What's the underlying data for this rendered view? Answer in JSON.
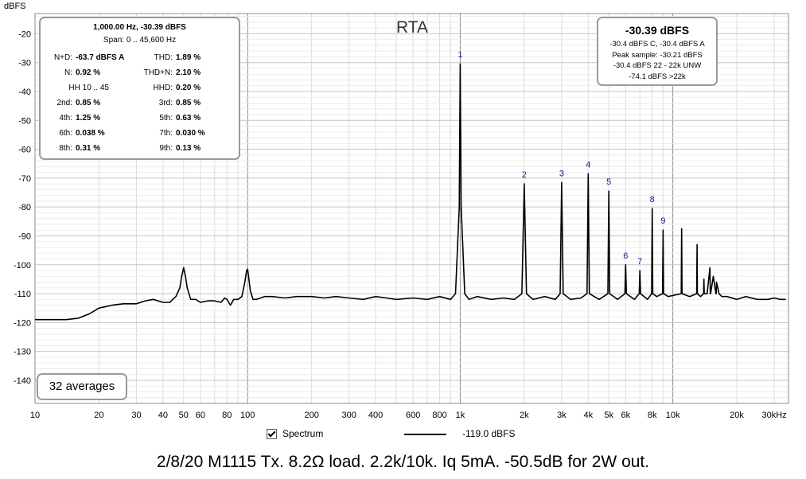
{
  "chart_data": {
    "type": "line",
    "title": "RTA",
    "ylabel": "dBFS",
    "xscale": "log",
    "xlim": [
      10,
      35000
    ],
    "ylim": [
      -148,
      -13
    ],
    "grid": true,
    "xticks": [
      {
        "v": 10,
        "t": "10"
      },
      {
        "v": 20,
        "t": "20"
      },
      {
        "v": 30,
        "t": "30"
      },
      {
        "v": 40,
        "t": "40"
      },
      {
        "v": 50,
        "t": "50"
      },
      {
        "v": 60,
        "t": "60"
      },
      {
        "v": 80,
        "t": "80"
      },
      {
        "v": 100,
        "t": "100"
      },
      {
        "v": 200,
        "t": "200"
      },
      {
        "v": 300,
        "t": "300"
      },
      {
        "v": 400,
        "t": "400"
      },
      {
        "v": 600,
        "t": "600"
      },
      {
        "v": 800,
        "t": "800"
      },
      {
        "v": 1000,
        "t": "1k"
      },
      {
        "v": 2000,
        "t": "2k"
      },
      {
        "v": 3000,
        "t": "3k"
      },
      {
        "v": 4000,
        "t": "4k"
      },
      {
        "v": 5000,
        "t": "5k"
      },
      {
        "v": 6000,
        "t": "6k"
      },
      {
        "v": 8000,
        "t": "8k"
      },
      {
        "v": 10000,
        "t": "10k"
      },
      {
        "v": 20000,
        "t": "20k"
      },
      {
        "v": 30000,
        "t": "30kHz"
      }
    ],
    "yticks": [
      -20,
      -30,
      -40,
      -50,
      -60,
      -70,
      -80,
      -90,
      -100,
      -110,
      -120,
      -130,
      -140
    ],
    "series": [
      {
        "name": "Spectrum",
        "x": [
          10,
          12,
          14,
          16,
          18,
          20,
          23,
          26,
          30,
          33,
          36,
          40,
          43,
          46,
          48,
          49,
          50,
          51,
          52,
          54,
          57,
          60,
          65,
          70,
          75,
          78,
          80,
          83,
          86,
          90,
          94,
          97,
          99,
          100,
          101,
          103,
          106,
          110,
          120,
          130,
          150,
          170,
          200,
          230,
          260,
          300,
          350,
          400,
          450,
          500,
          600,
          700,
          800,
          900,
          950,
          990,
          1000,
          1010,
          1050,
          1100,
          1200,
          1400,
          1600,
          1800,
          1950,
          2000,
          2050,
          2200,
          2500,
          2800,
          2950,
          3000,
          3050,
          3300,
          3700,
          3950,
          4000,
          4050,
          4500,
          4950,
          5000,
          5050,
          5500,
          5950,
          6000,
          6050,
          6600,
          6950,
          7000,
          7050,
          7600,
          7950,
          8000,
          8050,
          8400,
          8950,
          9000,
          9050,
          9500,
          10950,
          11000,
          11050,
          12000,
          12950,
          13000,
          13050,
          13500,
          13950,
          14000,
          14050,
          14500,
          14950,
          15000,
          15050,
          15500,
          15950,
          16000,
          16050,
          16500,
          17000,
          18000,
          20000,
          22000,
          25000,
          28000,
          30000,
          32000,
          34000
        ],
        "y": [
          -119,
          -119,
          -119,
          -118.5,
          -117,
          -115,
          -114,
          -113.5,
          -113.5,
          -112.5,
          -112,
          -113,
          -113,
          -111,
          -108,
          -104,
          -101,
          -104,
          -108,
          -112,
          -112,
          -113,
          -112.5,
          -112.5,
          -113,
          -111.5,
          -112,
          -114,
          -112,
          -112,
          -111,
          -106,
          -102,
          -101.5,
          -104,
          -109,
          -112,
          -112,
          -111,
          -111,
          -111.5,
          -111,
          -111,
          -111.5,
          -111,
          -111.5,
          -112,
          -111,
          -111.5,
          -112,
          -111.5,
          -112,
          -111,
          -112,
          -110,
          -80,
          -30.4,
          -80,
          -110,
          -112,
          -111,
          -112,
          -111.5,
          -112,
          -110,
          -72,
          -110,
          -112,
          -111,
          -112,
          -110,
          -71.5,
          -110,
          -112,
          -111.5,
          -110,
          -68.5,
          -110,
          -112,
          -110,
          -74.5,
          -110,
          -112,
          -110,
          -100,
          -110,
          -112,
          -110,
          -102,
          -110,
          -112,
          -110,
          -80.5,
          -110,
          -111,
          -110,
          -88,
          -110,
          -111,
          -110,
          -87.5,
          -110,
          -111,
          -110,
          -93,
          -110,
          -111,
          -110,
          -105,
          -110,
          -110,
          -101,
          -110,
          -110,
          -104,
          -110,
          -110,
          -106,
          -110,
          -111,
          -111,
          -112,
          -111,
          -112,
          -112,
          -111.5,
          -112,
          -112
        ]
      }
    ],
    "markers": [
      {
        "label": "1",
        "x": 1000,
        "y": -30.4
      },
      {
        "label": "2",
        "x": 2000,
        "y": -72
      },
      {
        "label": "3",
        "x": 3000,
        "y": -71.5
      },
      {
        "label": "4",
        "x": 4000,
        "y": -68.5
      },
      {
        "label": "5",
        "x": 5000,
        "y": -74.5
      },
      {
        "label": "6",
        "x": 6000,
        "y": -100
      },
      {
        "label": "7",
        "x": 7000,
        "y": -102
      },
      {
        "label": "8",
        "x": 8000,
        "y": -80.5
      },
      {
        "label": "9",
        "x": 9000,
        "y": -88
      }
    ]
  },
  "stats": {
    "header": "1,000.00 Hz, -30.39 dBFS",
    "span": "Span: 0 .. 45,600 Hz",
    "rows": [
      {
        "l1": "N+D:",
        "v1": "-63.7 dBFS A",
        "l2": "THD:",
        "v2": "1.89 %"
      },
      {
        "l1": "N:",
        "v1": "0.92 %",
        "l2": "THD+N:",
        "v2": "2.10 %"
      },
      {
        "l1": "HH 10 .. 45",
        "v1": "",
        "l2": "HHD:",
        "v2": "0.20 %"
      },
      {
        "l1": "2nd:",
        "v1": "0.85 %",
        "l2": "3rd:",
        "v2": "0.85 %"
      },
      {
        "l1": "4th:",
        "v1": "1.25 %",
        "l2": "5th:",
        "v2": "0.63 %"
      },
      {
        "l1": "6th:",
        "v1": "0.038 %",
        "l2": "7th:",
        "v2": "0.030 %"
      },
      {
        "l1": "8th:",
        "v1": "0.31 %",
        "l2": "9th:",
        "v2": "0.13 %"
      }
    ]
  },
  "level": {
    "main": "-30.39 dBFS",
    "lines": [
      "-30.4 dBFS C, -30.4 dBFS A",
      "Peak sample: -30.21 dBFS",
      "-30.4 dBFS 22 - 22k UNW",
      "-74.1 dBFS >22k"
    ]
  },
  "averages": "32 averages",
  "legend": {
    "checkbox_label": "Spectrum",
    "value": "-119.0 dBFS"
  },
  "caption": "2/8/20 M1115 Tx. 8.2Ω load. 2.2k/10k. Iq 5mA. -50.5dB for 2W out."
}
